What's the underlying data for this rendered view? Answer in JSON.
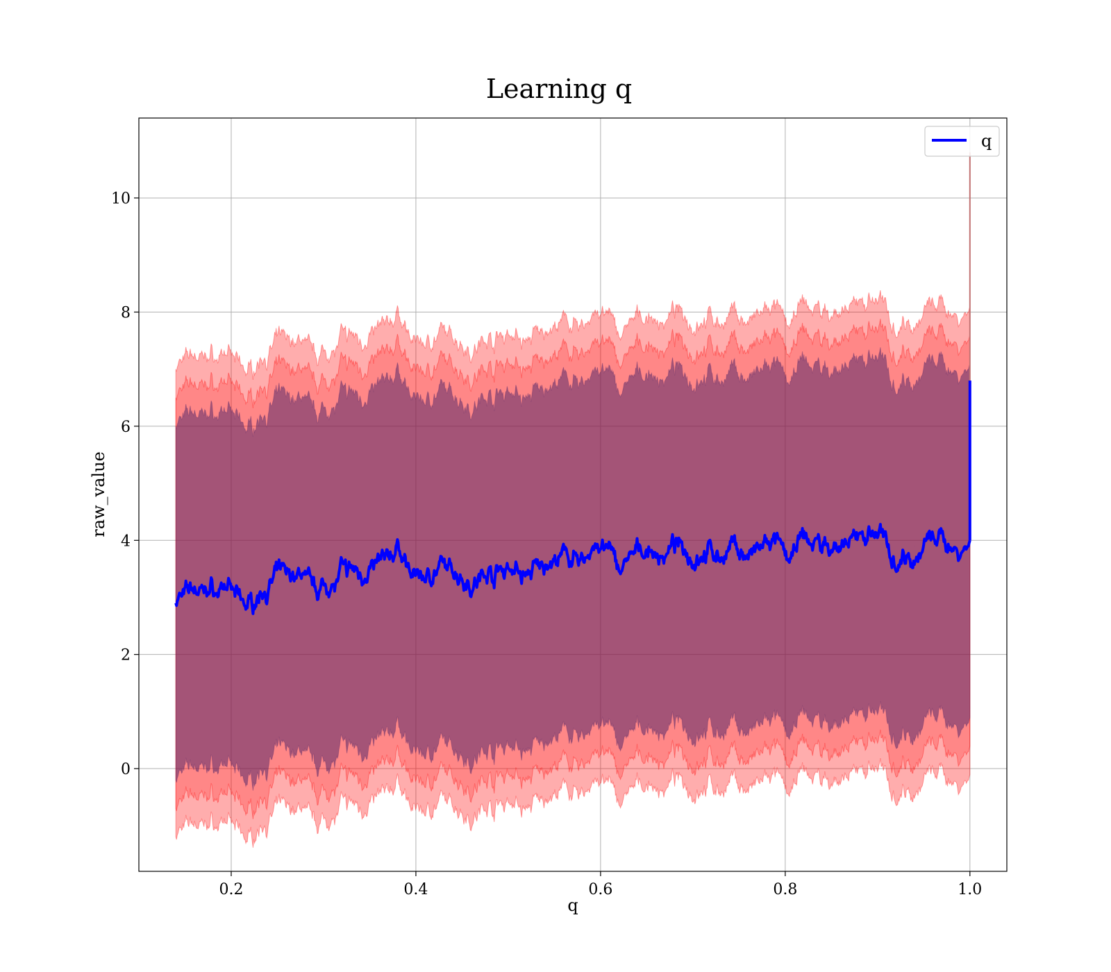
{
  "chart_data": {
    "type": "line",
    "title": "Learning q",
    "xlabel": "q",
    "ylabel": "raw_value",
    "xlim": [
      0.1,
      1.04
    ],
    "ylim": [
      -1.8,
      11.4
    ],
    "xticks": [
      0.2,
      0.4,
      0.6,
      0.8,
      1.0
    ],
    "xtick_labels": [
      "0.2",
      "0.4",
      "0.6",
      "0.8",
      "1.0"
    ],
    "yticks": [
      0,
      2,
      4,
      6,
      8,
      10
    ],
    "ytick_labels": [
      "0",
      "2",
      "4",
      "6",
      "8",
      "10"
    ],
    "grid": true,
    "legend": {
      "placement": "upper-right",
      "entries": [
        "q"
      ]
    },
    "colors": {
      "line": "#0000ff",
      "band": "#ff0000",
      "inner_band": "#5a2a6a"
    },
    "series": [
      {
        "name": "q",
        "x": [
          0.14,
          0.16,
          0.18,
          0.2,
          0.22,
          0.24,
          0.26,
          0.28,
          0.3,
          0.32,
          0.34,
          0.36,
          0.38,
          0.4,
          0.42,
          0.44,
          0.46,
          0.48,
          0.5,
          0.52,
          0.54,
          0.56,
          0.58,
          0.6,
          0.62,
          0.64,
          0.66,
          0.68,
          0.7,
          0.72,
          0.74,
          0.76,
          0.78,
          0.8,
          0.82,
          0.84,
          0.86,
          0.88,
          0.9,
          0.92,
          0.94,
          0.96,
          0.98,
          1.0
        ],
        "y": [
          2.9,
          3.2,
          3.2,
          3.0,
          2.9,
          3.2,
          3.4,
          3.5,
          3.2,
          3.5,
          3.4,
          3.7,
          3.8,
          3.4,
          3.5,
          3.4,
          3.3,
          3.4,
          3.6,
          3.5,
          3.5,
          3.6,
          3.7,
          3.9,
          3.5,
          3.8,
          3.7,
          3.8,
          3.7,
          3.8,
          3.8,
          3.7,
          3.8,
          3.7,
          3.9,
          3.9,
          3.8,
          4.0,
          4.1,
          3.8,
          3.9,
          4.0,
          3.9,
          4.0
        ]
      }
    ]
  }
}
